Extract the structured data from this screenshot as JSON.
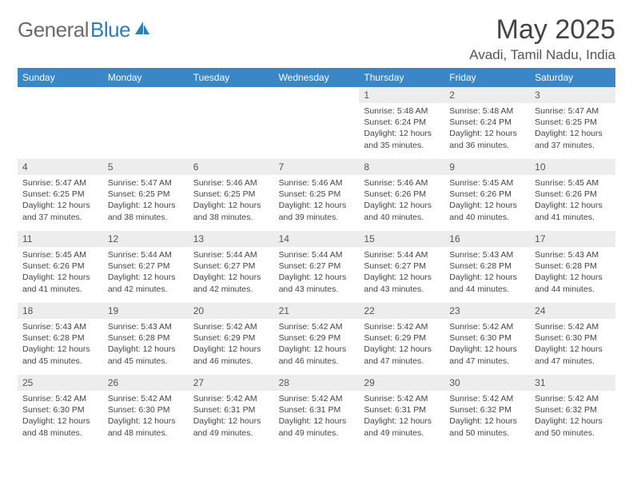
{
  "logo": {
    "part1": "General",
    "part2": "Blue"
  },
  "title": "May 2025",
  "location": "Avadi, Tamil Nadu, India",
  "colors": {
    "header_bg": "#3a87c8",
    "header_text": "#ffffff",
    "daynum_bg": "#ededed",
    "daynum_text": "#555555",
    "body_text": "#444444",
    "logo_gray": "#6b6b6b",
    "logo_blue": "#2c7fb8"
  },
  "dow": [
    "Sunday",
    "Monday",
    "Tuesday",
    "Wednesday",
    "Thursday",
    "Friday",
    "Saturday"
  ],
  "weeks": [
    [
      null,
      null,
      null,
      null,
      {
        "n": "1",
        "sr": "5:48 AM",
        "ss": "6:24 PM",
        "dl": "12 hours and 35 minutes."
      },
      {
        "n": "2",
        "sr": "5:48 AM",
        "ss": "6:24 PM",
        "dl": "12 hours and 36 minutes."
      },
      {
        "n": "3",
        "sr": "5:47 AM",
        "ss": "6:25 PM",
        "dl": "12 hours and 37 minutes."
      }
    ],
    [
      {
        "n": "4",
        "sr": "5:47 AM",
        "ss": "6:25 PM",
        "dl": "12 hours and 37 minutes."
      },
      {
        "n": "5",
        "sr": "5:47 AM",
        "ss": "6:25 PM",
        "dl": "12 hours and 38 minutes."
      },
      {
        "n": "6",
        "sr": "5:46 AM",
        "ss": "6:25 PM",
        "dl": "12 hours and 38 minutes."
      },
      {
        "n": "7",
        "sr": "5:46 AM",
        "ss": "6:25 PM",
        "dl": "12 hours and 39 minutes."
      },
      {
        "n": "8",
        "sr": "5:46 AM",
        "ss": "6:26 PM",
        "dl": "12 hours and 40 minutes."
      },
      {
        "n": "9",
        "sr": "5:45 AM",
        "ss": "6:26 PM",
        "dl": "12 hours and 40 minutes."
      },
      {
        "n": "10",
        "sr": "5:45 AM",
        "ss": "6:26 PM",
        "dl": "12 hours and 41 minutes."
      }
    ],
    [
      {
        "n": "11",
        "sr": "5:45 AM",
        "ss": "6:26 PM",
        "dl": "12 hours and 41 minutes."
      },
      {
        "n": "12",
        "sr": "5:44 AM",
        "ss": "6:27 PM",
        "dl": "12 hours and 42 minutes."
      },
      {
        "n": "13",
        "sr": "5:44 AM",
        "ss": "6:27 PM",
        "dl": "12 hours and 42 minutes."
      },
      {
        "n": "14",
        "sr": "5:44 AM",
        "ss": "6:27 PM",
        "dl": "12 hours and 43 minutes."
      },
      {
        "n": "15",
        "sr": "5:44 AM",
        "ss": "6:27 PM",
        "dl": "12 hours and 43 minutes."
      },
      {
        "n": "16",
        "sr": "5:43 AM",
        "ss": "6:28 PM",
        "dl": "12 hours and 44 minutes."
      },
      {
        "n": "17",
        "sr": "5:43 AM",
        "ss": "6:28 PM",
        "dl": "12 hours and 44 minutes."
      }
    ],
    [
      {
        "n": "18",
        "sr": "5:43 AM",
        "ss": "6:28 PM",
        "dl": "12 hours and 45 minutes."
      },
      {
        "n": "19",
        "sr": "5:43 AM",
        "ss": "6:28 PM",
        "dl": "12 hours and 45 minutes."
      },
      {
        "n": "20",
        "sr": "5:42 AM",
        "ss": "6:29 PM",
        "dl": "12 hours and 46 minutes."
      },
      {
        "n": "21",
        "sr": "5:42 AM",
        "ss": "6:29 PM",
        "dl": "12 hours and 46 minutes."
      },
      {
        "n": "22",
        "sr": "5:42 AM",
        "ss": "6:29 PM",
        "dl": "12 hours and 47 minutes."
      },
      {
        "n": "23",
        "sr": "5:42 AM",
        "ss": "6:30 PM",
        "dl": "12 hours and 47 minutes."
      },
      {
        "n": "24",
        "sr": "5:42 AM",
        "ss": "6:30 PM",
        "dl": "12 hours and 47 minutes."
      }
    ],
    [
      {
        "n": "25",
        "sr": "5:42 AM",
        "ss": "6:30 PM",
        "dl": "12 hours and 48 minutes."
      },
      {
        "n": "26",
        "sr": "5:42 AM",
        "ss": "6:30 PM",
        "dl": "12 hours and 48 minutes."
      },
      {
        "n": "27",
        "sr": "5:42 AM",
        "ss": "6:31 PM",
        "dl": "12 hours and 49 minutes."
      },
      {
        "n": "28",
        "sr": "5:42 AM",
        "ss": "6:31 PM",
        "dl": "12 hours and 49 minutes."
      },
      {
        "n": "29",
        "sr": "5:42 AM",
        "ss": "6:31 PM",
        "dl": "12 hours and 49 minutes."
      },
      {
        "n": "30",
        "sr": "5:42 AM",
        "ss": "6:32 PM",
        "dl": "12 hours and 50 minutes."
      },
      {
        "n": "31",
        "sr": "5:42 AM",
        "ss": "6:32 PM",
        "dl": "12 hours and 50 minutes."
      }
    ]
  ],
  "labels": {
    "sunrise": "Sunrise: ",
    "sunset": "Sunset: ",
    "daylight": "Daylight: "
  }
}
